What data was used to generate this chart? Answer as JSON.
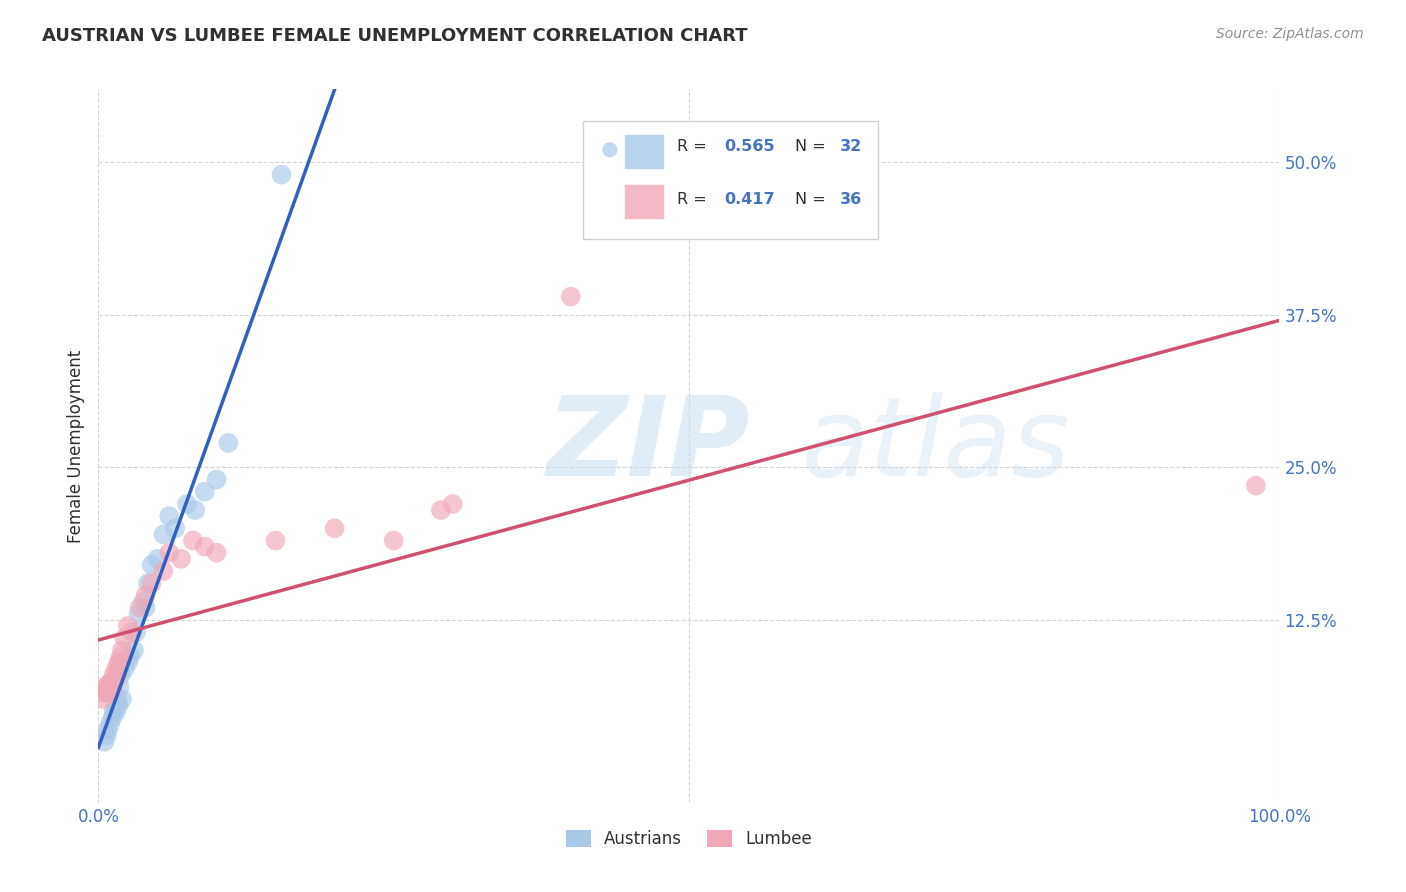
{
  "title": "AUSTRIAN VS LUMBEE FEMALE UNEMPLOYMENT CORRELATION CHART",
  "source": "Source: ZipAtlas.com",
  "ylabel": "Female Unemployment",
  "watermark_zip": "ZIP",
  "watermark_atlas": "atlas",
  "xlim": [
    0.0,
    1.0
  ],
  "ylim": [
    -0.025,
    0.56
  ],
  "ytick_vals": [
    0.0,
    0.125,
    0.25,
    0.375,
    0.5
  ],
  "ytick_labels": [
    "",
    "12.5%",
    "25.0%",
    "37.5%",
    "50.0%"
  ],
  "xtick_vals": [
    0.0,
    1.0
  ],
  "xtick_labels": [
    "0.0%",
    "100.0%"
  ],
  "legend_r1": "R = 0.565",
  "legend_n1": "N = 32",
  "legend_r2": "R = 0.417",
  "legend_n2": "N = 36",
  "austrians_color": "#a8c8e8",
  "lumbee_color": "#f0a8b8",
  "austrians_line_color": "#3060c0",
  "lumbee_line_color": "#d05070",
  "aus_x": [
    0.005,
    0.007,
    0.008,
    0.01,
    0.012,
    0.013,
    0.015,
    0.016,
    0.017,
    0.018,
    0.019,
    0.02,
    0.022,
    0.025,
    0.027,
    0.03,
    0.032,
    0.034,
    0.038,
    0.04,
    0.042,
    0.045,
    0.05,
    0.055,
    0.06,
    0.065,
    0.075,
    0.082,
    0.09,
    0.1,
    0.11,
    0.155
  ],
  "aus_y": [
    0.025,
    0.03,
    0.035,
    0.04,
    0.045,
    0.05,
    0.05,
    0.06,
    0.055,
    0.07,
    0.08,
    0.06,
    0.085,
    0.09,
    0.095,
    0.1,
    0.115,
    0.13,
    0.14,
    0.135,
    0.155,
    0.17,
    0.175,
    0.195,
    0.21,
    0.2,
    0.22,
    0.215,
    0.23,
    0.24,
    0.27,
    0.49
  ],
  "lum_x": [
    0.004,
    0.005,
    0.006,
    0.007,
    0.008,
    0.009,
    0.01,
    0.011,
    0.012,
    0.013,
    0.014,
    0.015,
    0.016,
    0.017,
    0.018,
    0.019,
    0.02,
    0.022,
    0.025,
    0.028,
    0.035,
    0.04,
    0.045,
    0.055,
    0.06,
    0.07,
    0.08,
    0.09,
    0.1,
    0.15,
    0.2,
    0.25,
    0.29,
    0.3,
    0.4,
    0.98
  ],
  "lum_y": [
    0.06,
    0.065,
    0.07,
    0.068,
    0.072,
    0.065,
    0.07,
    0.075,
    0.068,
    0.08,
    0.075,
    0.085,
    0.08,
    0.09,
    0.09,
    0.095,
    0.1,
    0.11,
    0.12,
    0.115,
    0.135,
    0.145,
    0.155,
    0.165,
    0.18,
    0.175,
    0.19,
    0.185,
    0.18,
    0.19,
    0.2,
    0.19,
    0.215,
    0.22,
    0.39,
    0.235
  ],
  "background_color": "#ffffff",
  "grid_color": "#c8c8c8",
  "title_color": "#303030",
  "source_color": "#909090",
  "tick_color": "#4472c4"
}
